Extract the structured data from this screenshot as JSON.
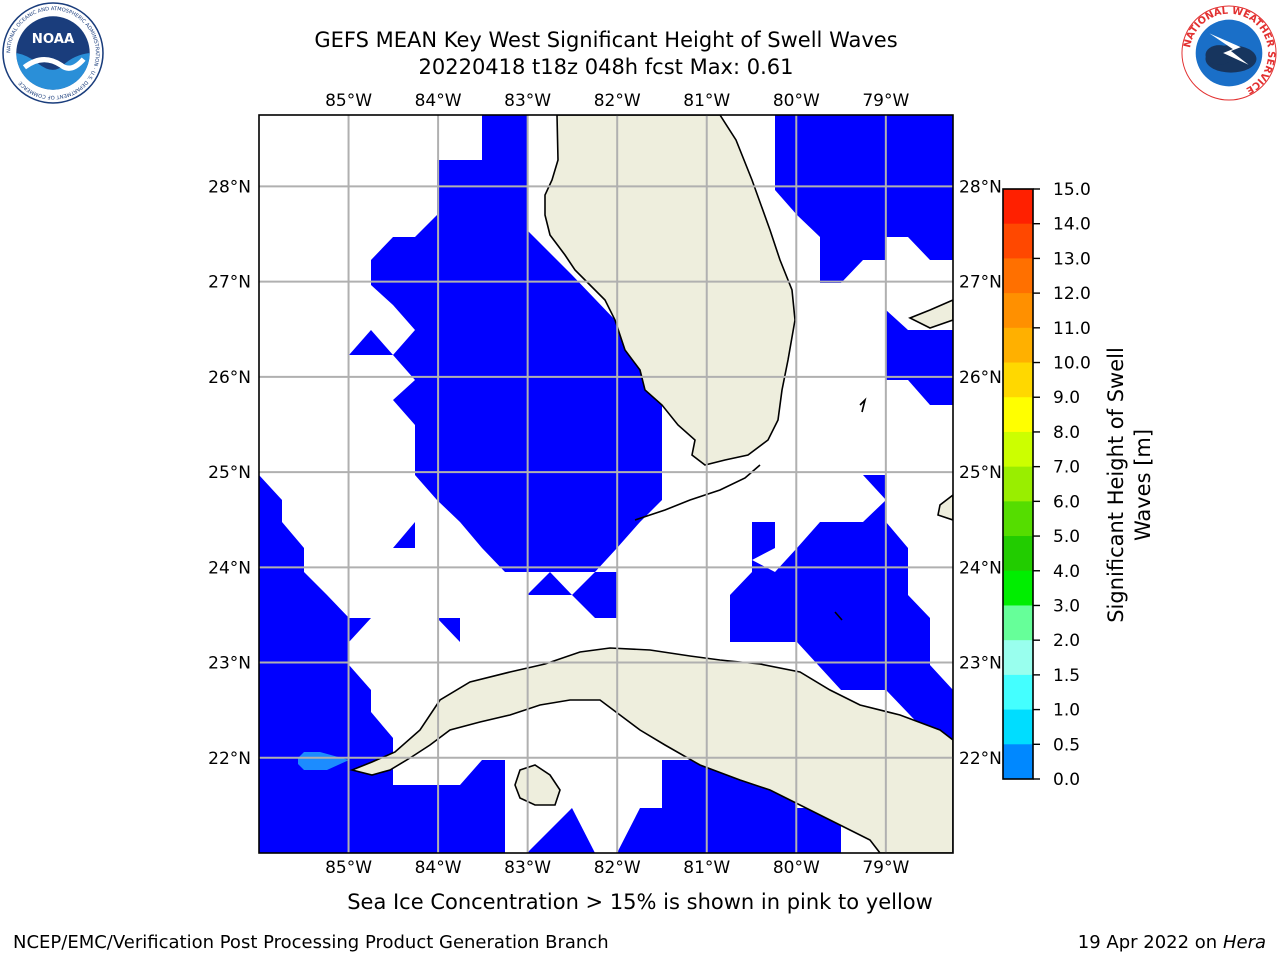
{
  "header": {
    "title_line1": "GEFS MEAN Key West Significant Height of Swell Waves",
    "title_line2": "20220418 t18z 048h fcst   Max: 0.61"
  },
  "logos": {
    "left": {
      "icon": "noaa-logo-icon",
      "text": "NOAA",
      "ring_text": "NATIONAL OCEANIC AND ATMOSPHERIC ADMINISTRATION · U.S. DEPARTMENT OF COMMERCE"
    },
    "right": {
      "icon": "nws-logo-icon",
      "ring_text": "NATIONAL WEATHER SERVICE"
    }
  },
  "map": {
    "lon_labels": [
      "85°W",
      "84°W",
      "83°W",
      "82°W",
      "81°W",
      "80°W",
      "79°W"
    ],
    "lat_labels": [
      "28°N",
      "27°N",
      "26°N",
      "25°N",
      "24°N",
      "23°N",
      "22°N"
    ],
    "lon_values": [
      -85,
      -84,
      -83,
      -82,
      -81,
      -80,
      -79
    ],
    "lat_values": [
      28,
      27,
      26,
      25,
      24,
      23,
      22
    ],
    "extent": {
      "lon_min": -86.0,
      "lon_max": -78.25,
      "lat_min": 21.0,
      "lat_max": 28.75
    },
    "colors": {
      "ocean_swell": "#0000ff",
      "no_data": "#ffffff",
      "land": "#eeeedd",
      "coast": "#000000",
      "grid": "#b0b0b0",
      "swell_max_patch": "#1c8cff"
    }
  },
  "colorbar": {
    "label": "Significant Height of Swell Waves [m]",
    "label_line1": "Significant Height of Swell",
    "label_line2": "Waves [m]",
    "ticks": [
      "15.0",
      "14.0",
      "13.0",
      "12.0",
      "11.0",
      "10.0",
      "9.0",
      "8.0",
      "7.0",
      "6.0",
      "5.0",
      "4.0",
      "3.0",
      "2.0",
      "1.5",
      "1.0",
      "0.5",
      "0.0"
    ],
    "tick_values": [
      15,
      14,
      13,
      12,
      11,
      10,
      9,
      8,
      7,
      6,
      5,
      4,
      3,
      2,
      1.5,
      1,
      0.5,
      0
    ],
    "colors": [
      "#ff0000",
      "#ff2000",
      "#ff4800",
      "#ff7000",
      "#ff9000",
      "#ffb000",
      "#ffd800",
      "#ffff00",
      "#ccff00",
      "#99ee00",
      "#55dd00",
      "#22cc00",
      "#00ee00",
      "#66ff99",
      "#99ffee",
      "#44ffff",
      "#00ddff",
      "#0088ff",
      "#0000ff"
    ]
  },
  "footer": {
    "ice_note": "Sea Ice Concentration > 15% is shown in pink to yellow",
    "credit": "NCEP/EMC/Verification Post Processing Product Generation Branch",
    "date": "19 Apr 2022 on",
    "machine": "Hera"
  }
}
